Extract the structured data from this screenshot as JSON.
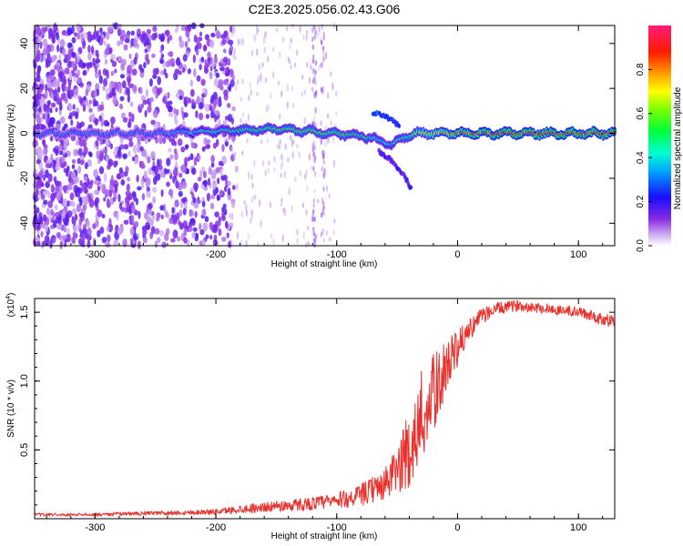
{
  "title": "C2E3.2025.056.02.43.G06",
  "chart_data": [
    {
      "type": "heatmap",
      "xlabel": "Height of straight line (km)",
      "ylabel": "Frequency (Hz)",
      "xlim": [
        -350,
        130
      ],
      "ylim": [
        -50,
        48
      ],
      "xticks": [
        -300,
        -200,
        -100,
        0,
        100
      ],
      "yticks": [
        -40,
        -20,
        0,
        20,
        40
      ],
      "xtick_labels": [
        "-300",
        "-200",
        "-100",
        "0",
        "100"
      ],
      "ytick_labels": [
        "-40",
        "-20",
        "0",
        "20",
        "40"
      ],
      "colorbar": {
        "label": "Normalized spectral amplitude",
        "range": [
          0,
          1
        ],
        "ticks": [
          0.0,
          0.2,
          0.4,
          0.6,
          0.8
        ],
        "tick_labels": [
          "0.0",
          "0.2",
          "0.4",
          "0.6",
          "0.8"
        ],
        "colormap": "rainbow (white-purple-blue-cyan-green-yellow-red-magenta)"
      },
      "ridge": {
        "description": "main spectral line near 0 Hz",
        "x": [
          -350,
          -250,
          -200,
          -150,
          -100,
          -80,
          -65,
          -55,
          -45,
          -35,
          -20,
          0,
          50,
          130
        ],
        "freq": [
          0,
          0,
          1,
          2,
          0,
          -1,
          -3,
          -5,
          -2,
          0,
          0,
          0,
          0,
          0
        ],
        "amplitude": [
          0.3,
          0.3,
          0.45,
          0.55,
          0.55,
          0.5,
          0.45,
          0.4,
          0.5,
          0.6,
          0.75,
          0.85,
          0.9,
          0.9
        ]
      },
      "branches": [
        {
          "x": [
            -70,
            -62,
            -55,
            -48
          ],
          "freq": [
            9,
            8,
            6,
            3
          ],
          "amplitude": 0.3
        },
        {
          "x": [
            -65,
            -55,
            -45,
            -38
          ],
          "freq": [
            -8,
            -12,
            -18,
            -25
          ],
          "amplitude": 0.2
        }
      ]
    },
    {
      "type": "line",
      "xlabel": "Height of straight line (km)",
      "ylabel": "SNR (10 * v/v)",
      "y_multiplier_label": "(x10",
      "y_multiplier_exp": "4",
      "y_multiplier_close": ")",
      "xlim": [
        -350,
        130
      ],
      "ylim": [
        0,
        1.6
      ],
      "xticks": [
        -300,
        -200,
        -100,
        0,
        100
      ],
      "yticks": [
        0.5,
        1.0,
        1.5
      ],
      "xtick_labels": [
        "-300",
        "-200",
        "-100",
        "0",
        "100"
      ],
      "ytick_labels": [
        "0.5",
        "1.0",
        "1.5"
      ],
      "color": "#e8302c",
      "series": [
        {
          "x": [
            -350,
            -300,
            -250,
            -200,
            -180,
            -150,
            -120,
            -100,
            -80,
            -60,
            -50,
            -40,
            -30,
            -20,
            -10,
            0,
            10,
            20,
            30,
            50,
            70,
            100,
            130
          ],
          "y": [
            0.03,
            0.03,
            0.04,
            0.05,
            0.07,
            0.09,
            0.11,
            0.13,
            0.17,
            0.25,
            0.35,
            0.5,
            0.7,
            0.9,
            1.1,
            1.25,
            1.38,
            1.47,
            1.52,
            1.55,
            1.53,
            1.5,
            1.43
          ],
          "noise": [
            0.01,
            0.01,
            0.015,
            0.02,
            0.03,
            0.04,
            0.05,
            0.06,
            0.08,
            0.12,
            0.18,
            0.28,
            0.32,
            0.3,
            0.2,
            0.12,
            0.08,
            0.06,
            0.05,
            0.04,
            0.04,
            0.04,
            0.05
          ]
        }
      ]
    }
  ]
}
